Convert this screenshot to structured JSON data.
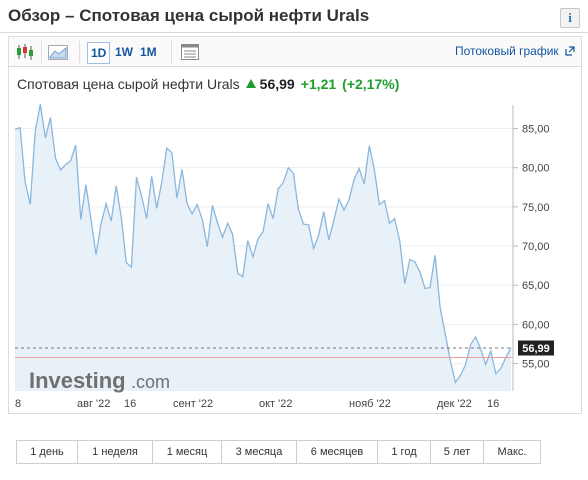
{
  "page_title": "Обзор – Спотовая цена сырой нефти Urals",
  "info_label": "i",
  "toolbar": {
    "timeframes": [
      "1D",
      "1W",
      "1M"
    ],
    "stream_link": "Потоковый график"
  },
  "quote": {
    "name": "Спотовая цена сырой нефти Urals",
    "price": "56,99",
    "change": "+1,21",
    "change_pct": "(+2,17%)",
    "direction": "up"
  },
  "watermark": {
    "brand": "Investing",
    "suffix": ".com"
  },
  "price_badge": "56,99",
  "ranges": [
    "1 день",
    "1 неделя",
    "1 месяц",
    "3 месяца",
    "6 месяцев",
    "1 год",
    "5 лет",
    "Макс."
  ],
  "colors": {
    "accent": "#1256a0",
    "up": "#1f9d2e",
    "line": "#8ab7dd",
    "fill": "#e8f0f8",
    "ref_line": "#e8a0a0"
  },
  "chart_data": {
    "type": "area",
    "x_tick_labels": [
      "8",
      "авг '22",
      "16",
      "сент '22",
      "окт '22",
      "нояб '22",
      "дек '22",
      "16"
    ],
    "y_tick_labels": [
      "85,00",
      "80,00",
      "75,00",
      "70,00",
      "65,00",
      "60,00",
      "55,00"
    ],
    "ylim": [
      51.5,
      88
    ],
    "reference_price": 55.78,
    "current_price": 56.99,
    "series": [
      {
        "values": [
          84.9,
          85.1,
          78.2,
          75.3,
          84.6,
          88.1,
          83.8,
          86.4,
          81.2,
          79.7,
          80.4,
          80.9,
          82.9,
          73.4,
          77.8,
          73.5,
          68.9,
          72.8,
          75.4,
          73.2,
          77.7,
          73.6,
          67.9,
          67.3,
          78.8,
          76.4,
          73.5,
          78.9,
          74.8,
          78.2,
          82.5,
          81.9,
          76.1,
          79.8,
          75.4,
          74.1,
          75.3,
          73.4,
          69.9,
          75.2,
          73.0,
          71.1,
          72.9,
          71.5,
          66.5,
          66.1,
          70.7,
          68.6,
          70.9,
          71.8,
          75.4,
          73.5,
          77.3,
          78.1,
          80.0,
          79.3,
          74.7,
          72.8,
          72.7,
          69.7,
          71.4,
          74.4,
          70.8,
          73.3,
          76.0,
          74.6,
          75.9,
          78.5,
          79.9,
          77.9,
          82.8,
          79.8,
          75.3,
          75.8,
          72.9,
          73.5,
          70.7,
          65.2,
          68.3,
          68.0,
          66.7,
          64.6,
          64.7,
          68.8,
          62.2,
          58.8,
          55.4,
          52.6,
          53.5,
          54.8,
          57.4,
          58.4,
          56.9,
          54.9,
          56.6,
          53.7,
          54.4,
          55.8,
          56.99
        ]
      }
    ]
  }
}
